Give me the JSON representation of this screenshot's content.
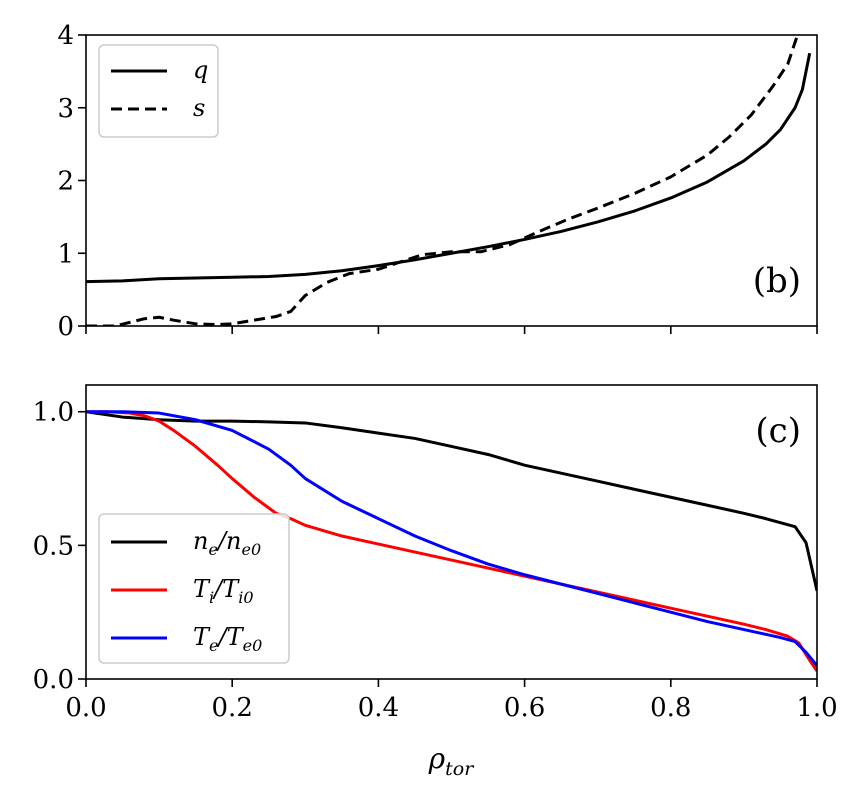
{
  "chart_data": [
    {
      "type": "line",
      "panel_label": "(b)",
      "xlim": [
        0,
        1
      ],
      "ylim": [
        0,
        4
      ],
      "yticks": [
        "0",
        "1",
        "2",
        "3",
        "4"
      ],
      "xtick_values": [
        0,
        0.2,
        0.4,
        0.6,
        0.8,
        1.0
      ],
      "show_xticklabels": false,
      "legend_position": "upper-left",
      "series": [
        {
          "name": "q",
          "label_main": "q",
          "label_sub": "",
          "label_den_main": "",
          "label_den_sub": "",
          "color": "#000000",
          "dash": "solid",
          "x": [
            0.0,
            0.05,
            0.1,
            0.15,
            0.2,
            0.25,
            0.3,
            0.35,
            0.4,
            0.45,
            0.5,
            0.55,
            0.6,
            0.65,
            0.7,
            0.75,
            0.8,
            0.85,
            0.9,
            0.93,
            0.95,
            0.97,
            0.98,
            0.99
          ],
          "y": [
            0.61,
            0.62,
            0.65,
            0.66,
            0.67,
            0.68,
            0.71,
            0.76,
            0.83,
            0.91,
            1.0,
            1.09,
            1.19,
            1.3,
            1.43,
            1.58,
            1.76,
            1.98,
            2.27,
            2.5,
            2.7,
            3.0,
            3.25,
            3.75
          ]
        },
        {
          "name": "s",
          "label_main": "s",
          "label_sub": "",
          "label_den_main": "",
          "label_den_sub": "",
          "color": "#000000",
          "dash": "dashed",
          "x": [
            0.0,
            0.02,
            0.04,
            0.06,
            0.08,
            0.1,
            0.12,
            0.15,
            0.18,
            0.2,
            0.23,
            0.26,
            0.28,
            0.3,
            0.33,
            0.36,
            0.4,
            0.43,
            0.46,
            0.5,
            0.54,
            0.58,
            0.62,
            0.66,
            0.7,
            0.75,
            0.8,
            0.85,
            0.88,
            0.91,
            0.94,
            0.96,
            0.975
          ],
          "y": [
            0.0,
            0.0,
            0.0,
            0.05,
            0.1,
            0.12,
            0.08,
            0.03,
            0.02,
            0.03,
            0.08,
            0.13,
            0.2,
            0.42,
            0.6,
            0.72,
            0.78,
            0.88,
            0.98,
            1.02,
            1.02,
            1.12,
            1.3,
            1.47,
            1.62,
            1.82,
            2.05,
            2.35,
            2.6,
            2.9,
            3.3,
            3.6,
            4.05
          ]
        }
      ]
    },
    {
      "type": "line",
      "panel_label": "(c)",
      "xlim": [
        0,
        1
      ],
      "ylim": [
        0,
        1.1
      ],
      "yticks": [
        "0.0",
        "0.5",
        "1.0"
      ],
      "xtick_values": [
        0,
        0.2,
        0.4,
        0.6,
        0.8,
        1.0
      ],
      "xticks": [
        "0.0",
        "0.2",
        "0.4",
        "0.6",
        "0.8",
        "1.0"
      ],
      "show_xticklabels": true,
      "xlabel_main": "ρ",
      "xlabel_sub": "tor",
      "legend_position": "lower-left",
      "series": [
        {
          "name": "ne/ne0",
          "label_main": "n",
          "label_sub": "e",
          "label_den_main": "n",
          "label_den_sub": "e0",
          "color": "#000000",
          "dash": "solid",
          "x": [
            0.0,
            0.05,
            0.1,
            0.15,
            0.2,
            0.25,
            0.3,
            0.35,
            0.4,
            0.45,
            0.5,
            0.55,
            0.6,
            0.65,
            0.7,
            0.75,
            0.8,
            0.85,
            0.9,
            0.93,
            0.95,
            0.97,
            0.985,
            1.0
          ],
          "y": [
            1.0,
            0.98,
            0.97,
            0.965,
            0.965,
            0.962,
            0.958,
            0.94,
            0.92,
            0.9,
            0.87,
            0.84,
            0.8,
            0.77,
            0.74,
            0.71,
            0.68,
            0.65,
            0.62,
            0.6,
            0.585,
            0.57,
            0.51,
            0.33
          ]
        },
        {
          "name": "Ti/Ti0",
          "label_main": "T",
          "label_sub": "i",
          "label_den_main": "T",
          "label_den_sub": "i0",
          "color": "#ff0000",
          "dash": "solid",
          "x": [
            0.0,
            0.03,
            0.06,
            0.08,
            0.1,
            0.12,
            0.15,
            0.18,
            0.2,
            0.23,
            0.26,
            0.28,
            0.3,
            0.35,
            0.4,
            0.45,
            0.5,
            0.55,
            0.6,
            0.65,
            0.7,
            0.75,
            0.8,
            0.85,
            0.9,
            0.93,
            0.96,
            0.975,
            0.99,
            1.0
          ],
          "y": [
            1.0,
            1.0,
            0.995,
            0.985,
            0.965,
            0.93,
            0.87,
            0.8,
            0.75,
            0.68,
            0.62,
            0.6,
            0.575,
            0.535,
            0.505,
            0.475,
            0.445,
            0.415,
            0.385,
            0.355,
            0.325,
            0.295,
            0.265,
            0.235,
            0.205,
            0.185,
            0.16,
            0.135,
            0.07,
            0.03
          ]
        },
        {
          "name": "Te/Te0",
          "label_main": "T",
          "label_sub": "e",
          "label_den_main": "T",
          "label_den_sub": "e0",
          "color": "#0000ff",
          "dash": "solid",
          "x": [
            0.0,
            0.05,
            0.1,
            0.15,
            0.2,
            0.25,
            0.28,
            0.3,
            0.35,
            0.4,
            0.45,
            0.5,
            0.55,
            0.6,
            0.65,
            0.7,
            0.75,
            0.8,
            0.85,
            0.9,
            0.95,
            0.97,
            0.985,
            1.0
          ],
          "y": [
            1.0,
            1.0,
            0.995,
            0.97,
            0.93,
            0.86,
            0.8,
            0.75,
            0.665,
            0.6,
            0.535,
            0.48,
            0.43,
            0.39,
            0.355,
            0.32,
            0.285,
            0.25,
            0.215,
            0.185,
            0.155,
            0.14,
            0.1,
            0.05
          ]
        }
      ]
    }
  ]
}
